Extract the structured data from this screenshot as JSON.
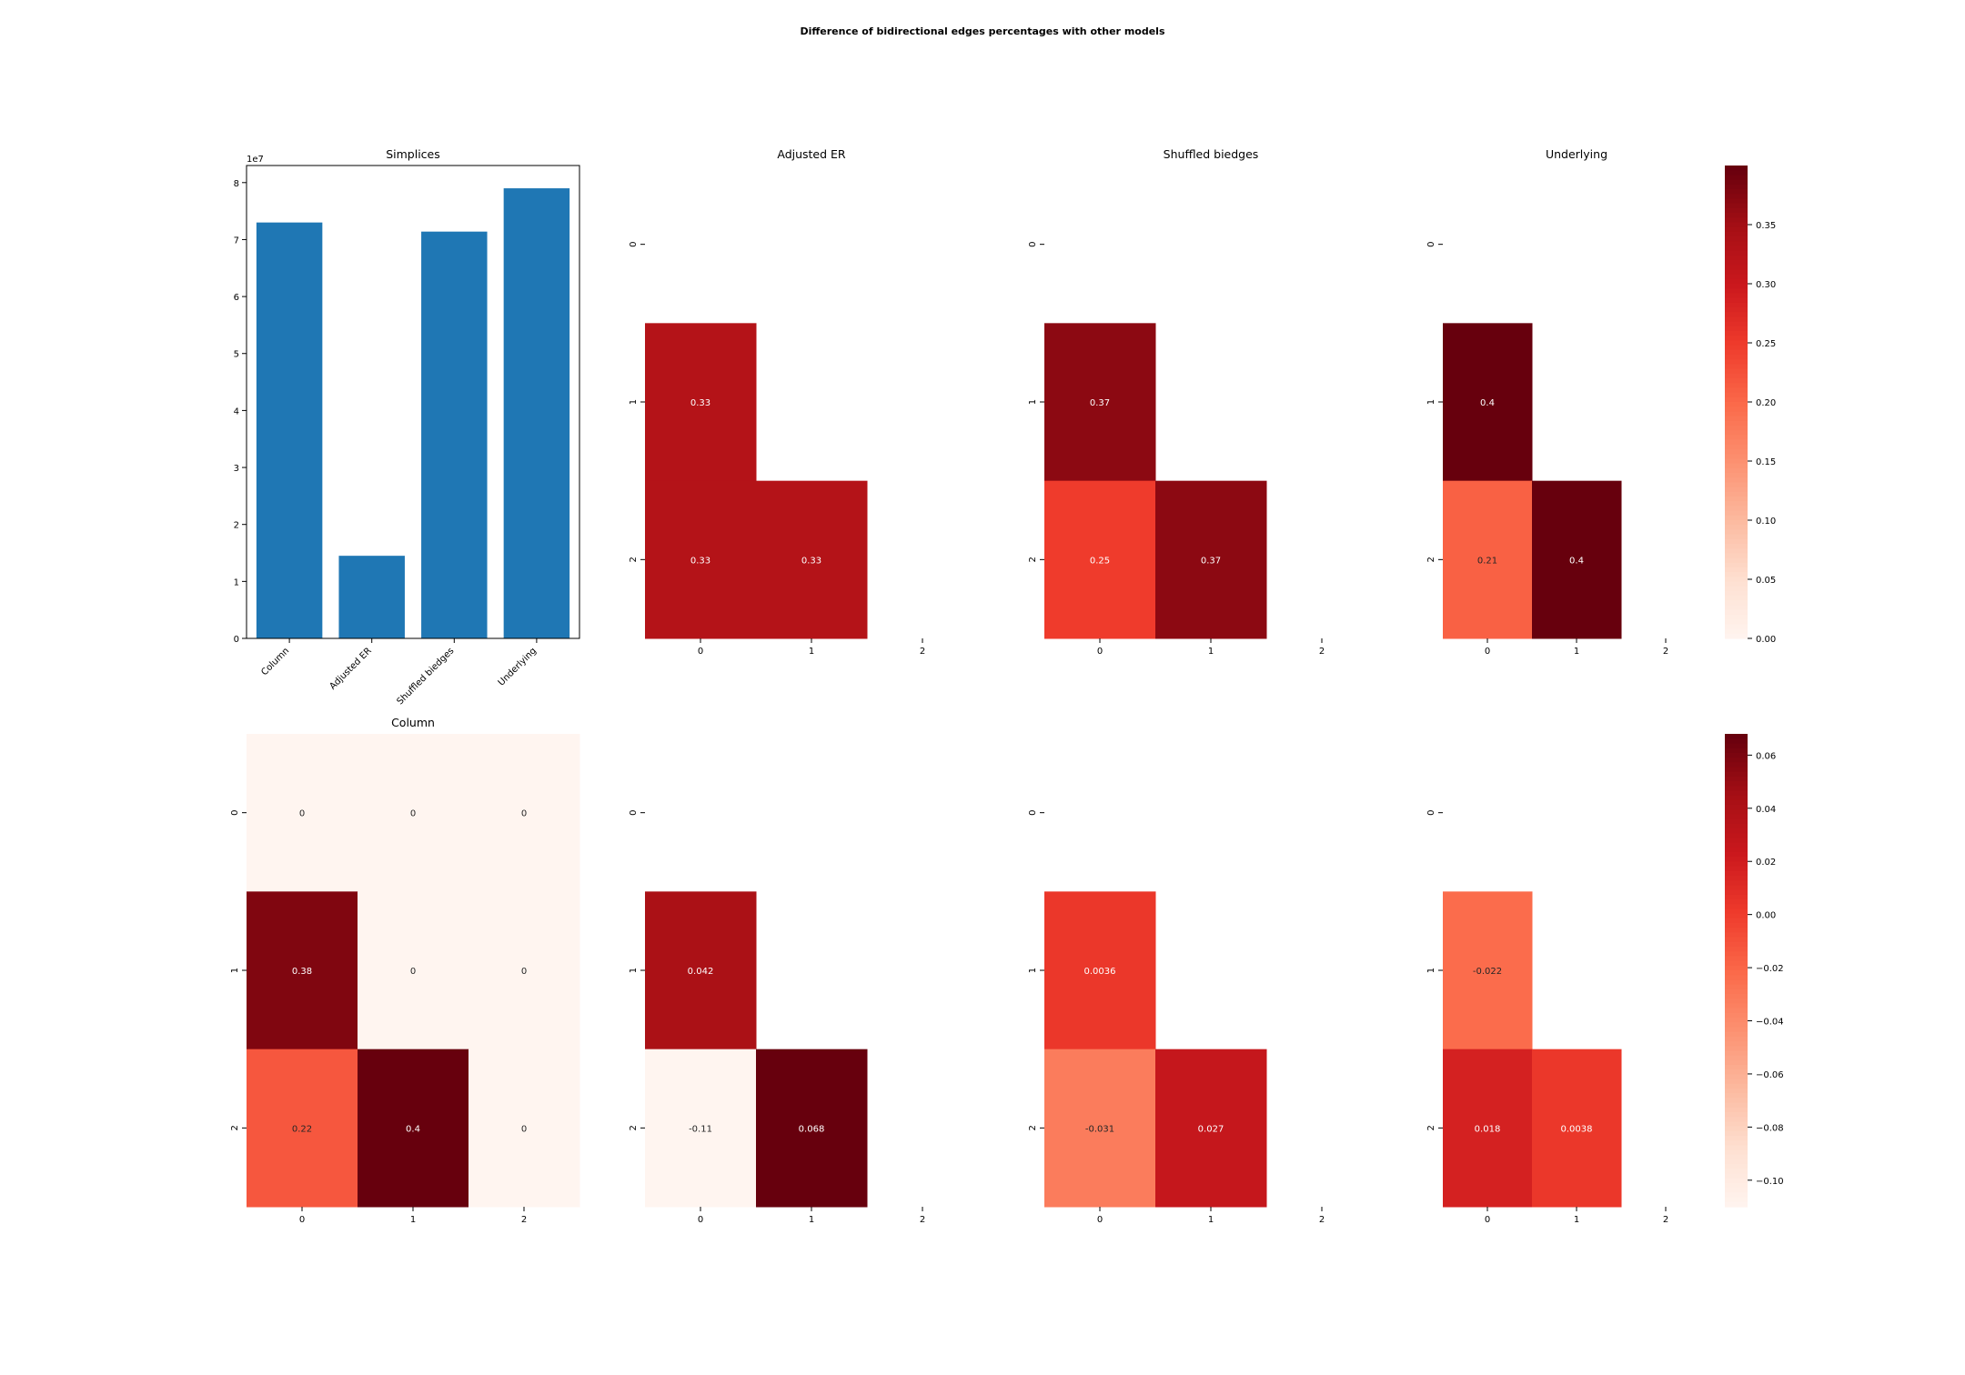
{
  "title": "Difference of bidirectional edges percentages with other models",
  "chart_data": [
    {
      "id": "simplices",
      "type": "bar",
      "title": "Simplices",
      "categories": [
        "Column",
        "Adjusted ER",
        "Shuffled biedges",
        "Underlying"
      ],
      "values": [
        73000000,
        14500000,
        71400000,
        79000000
      ],
      "ylim": [
        0,
        83000000
      ],
      "yticks": [
        0,
        1,
        2,
        3,
        4,
        5,
        6,
        7,
        8
      ],
      "offset_text": "1e7",
      "color": "#1f77b4"
    },
    {
      "id": "heat-adjusted-er-top",
      "type": "heatmap",
      "title": "Adjusted ER",
      "x_ticks": [
        "0",
        "1",
        "2"
      ],
      "y_ticks": [
        "0",
        "1",
        "2"
      ],
      "cells": [
        {
          "row": 1,
          "col": 0,
          "value": 0.33,
          "label": "0.33"
        },
        {
          "row": 2,
          "col": 0,
          "value": 0.33,
          "label": "0.33"
        },
        {
          "row": 2,
          "col": 1,
          "value": 0.33,
          "label": "0.33"
        }
      ]
    },
    {
      "id": "heat-shuffled-top",
      "type": "heatmap",
      "title": "Shuffled biedges",
      "x_ticks": [
        "0",
        "1",
        "2"
      ],
      "y_ticks": [
        "0",
        "1",
        "2"
      ],
      "cells": [
        {
          "row": 1,
          "col": 0,
          "value": 0.37,
          "label": "0.37"
        },
        {
          "row": 2,
          "col": 0,
          "value": 0.25,
          "label": "0.25"
        },
        {
          "row": 2,
          "col": 1,
          "value": 0.37,
          "label": "0.37"
        }
      ]
    },
    {
      "id": "heat-underlying-top",
      "type": "heatmap",
      "title": "Underlying",
      "x_ticks": [
        "0",
        "1",
        "2"
      ],
      "y_ticks": [
        "0",
        "1",
        "2"
      ],
      "cells": [
        {
          "row": 1,
          "col": 0,
          "value": 0.4,
          "label": "0.4"
        },
        {
          "row": 2,
          "col": 0,
          "value": 0.21,
          "label": "0.21"
        },
        {
          "row": 2,
          "col": 1,
          "value": 0.4,
          "label": "0.4"
        }
      ]
    },
    {
      "id": "colorbar-top",
      "type": "colorbar",
      "range": [
        0,
        0.4
      ],
      "ticks": [
        "0.00",
        "0.05",
        "0.10",
        "0.15",
        "0.20",
        "0.25",
        "0.30",
        "0.35"
      ]
    },
    {
      "id": "heat-column-bottom",
      "type": "heatmap",
      "title": "Column",
      "x_ticks": [
        "0",
        "1",
        "2"
      ],
      "y_ticks": [
        "0",
        "1",
        "2"
      ],
      "cells": [
        {
          "row": 0,
          "col": 0,
          "value": 0,
          "label": "0"
        },
        {
          "row": 0,
          "col": 1,
          "value": 0,
          "label": "0"
        },
        {
          "row": 0,
          "col": 2,
          "value": 0,
          "label": "0"
        },
        {
          "row": 1,
          "col": 0,
          "value": 0.38,
          "label": "0.38"
        },
        {
          "row": 1,
          "col": 1,
          "value": 0,
          "label": "0"
        },
        {
          "row": 1,
          "col": 2,
          "value": 0,
          "label": "0"
        },
        {
          "row": 2,
          "col": 0,
          "value": 0.22,
          "label": "0.22"
        },
        {
          "row": 2,
          "col": 1,
          "value": 0.4,
          "label": "0.4"
        },
        {
          "row": 2,
          "col": 2,
          "value": 0,
          "label": "0"
        }
      ]
    },
    {
      "id": "heat-adjusted-er-bottom",
      "type": "heatmap",
      "title": "",
      "x_ticks": [
        "0",
        "1",
        "2"
      ],
      "y_ticks": [
        "0",
        "1",
        "2"
      ],
      "cells": [
        {
          "row": 1,
          "col": 0,
          "value": 0.042,
          "label": "0.042"
        },
        {
          "row": 2,
          "col": 0,
          "value": -0.11,
          "label": "-0.11"
        },
        {
          "row": 2,
          "col": 1,
          "value": 0.068,
          "label": "0.068"
        }
      ]
    },
    {
      "id": "heat-shuffled-bottom",
      "type": "heatmap",
      "title": "",
      "x_ticks": [
        "0",
        "1",
        "2"
      ],
      "y_ticks": [
        "0",
        "1",
        "2"
      ],
      "cells": [
        {
          "row": 1,
          "col": 0,
          "value": 0.0036,
          "label": "0.0036"
        },
        {
          "row": 2,
          "col": 0,
          "value": -0.031,
          "label": "-0.031"
        },
        {
          "row": 2,
          "col": 1,
          "value": 0.027,
          "label": "0.027"
        }
      ]
    },
    {
      "id": "heat-underlying-bottom",
      "type": "heatmap",
      "title": "",
      "x_ticks": [
        "0",
        "1",
        "2"
      ],
      "y_ticks": [
        "0",
        "1",
        "2"
      ],
      "cells": [
        {
          "row": 1,
          "col": 0,
          "value": -0.022,
          "label": "-0.022"
        },
        {
          "row": 2,
          "col": 0,
          "value": 0.018,
          "label": "0.018"
        },
        {
          "row": 2,
          "col": 1,
          "value": 0.0038,
          "label": "0.0038"
        }
      ]
    },
    {
      "id": "colorbar-bottom",
      "type": "colorbar",
      "range": [
        -0.11,
        0.068
      ],
      "ticks": [
        "0.06",
        "0.04",
        "0.02",
        "0.00",
        "−0.02",
        "−0.04",
        "−0.06",
        "−0.08",
        "−0.10"
      ]
    }
  ]
}
